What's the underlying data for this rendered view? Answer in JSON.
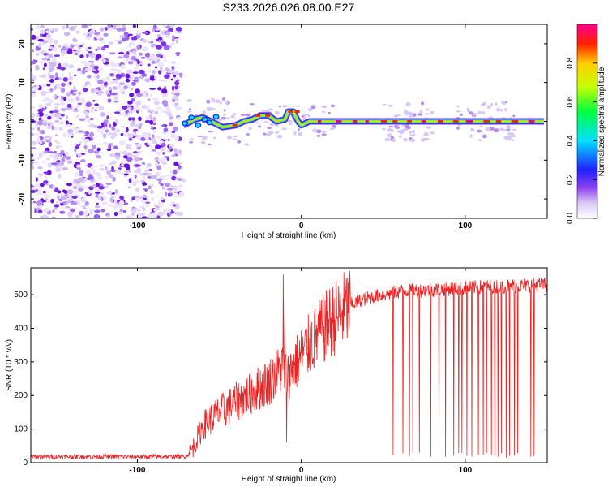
{
  "figure_title": "S233.2026.026.08.00.E27",
  "chart_data": [
    {
      "type": "heatmap",
      "name": "spectrogram",
      "xlabel": "Height of straight line (km)",
      "ylabel": "Frequency (Hz)",
      "xlim": [
        -165,
        150
      ],
      "ylim": [
        -25,
        25
      ],
      "xticks": [
        -100,
        0,
        100
      ],
      "yticks": [
        -20,
        -10,
        0,
        10,
        20
      ],
      "colorbar": {
        "label": "Normalized spectral amplitude",
        "range": [
          0,
          1
        ],
        "ticks": [
          0.0,
          0.2,
          0.4,
          0.6,
          0.8
        ],
        "tick_labels": [
          "0.0",
          "0.2",
          "0.4",
          "0.6",
          "0.8"
        ],
        "colormap": [
          "#ffffff",
          "#d9c8f5",
          "#8a3ff0",
          "#2020ff",
          "#00e0ff",
          "#00ff40",
          "#c8ff00",
          "#ffcc00",
          "#ff2000",
          "#ff0090"
        ]
      },
      "noise_region_x": [
        -165,
        -73
      ],
      "signal_track": {
        "x": [
          -72,
          -65,
          -60,
          -55,
          -48,
          -40,
          -35,
          -30,
          -25,
          -20,
          -15,
          -10,
          -8,
          -5,
          -2,
          0,
          5,
          10,
          20,
          40,
          60,
          80,
          100,
          120,
          140,
          148
        ],
        "y": [
          -1,
          0.5,
          1,
          0,
          -1.5,
          -1,
          0,
          0.5,
          1.5,
          1.5,
          0,
          0.5,
          2.5,
          2.5,
          0,
          -1,
          0,
          0,
          0,
          0,
          0,
          0,
          0,
          0,
          0,
          0
        ]
      }
    },
    {
      "type": "line",
      "name": "snr",
      "xlabel": "Height of straight line (km)",
      "ylabel": "SNR (10 * v/v)",
      "xlim": [
        -165,
        150
      ],
      "ylim": [
        0,
        580
      ],
      "xticks": [
        -100,
        0,
        100
      ],
      "yticks": [
        0,
        100,
        200,
        300,
        400,
        500
      ],
      "color": "#ee2020",
      "trend": {
        "x": [
          -165,
          -70,
          -66,
          -60,
          -50,
          -40,
          -30,
          -20,
          -14,
          -12,
          -8,
          -5,
          0,
          10,
          20,
          30,
          40,
          60,
          80,
          100,
          120,
          150
        ],
        "y": [
          18,
          18,
          45,
          110,
          150,
          180,
          210,
          240,
          270,
          285,
          260,
          285,
          320,
          380,
          430,
          470,
          490,
          510,
          515,
          520,
          525,
          530
        ]
      },
      "spikes": [
        {
          "x": -11,
          "y": 560
        },
        {
          "x": -10,
          "y": 520
        },
        {
          "x": -9,
          "y": 60
        }
      ],
      "dropouts_x": [
        56,
        62,
        66,
        68,
        72,
        79,
        84,
        88,
        93,
        96,
        98,
        101,
        104,
        108,
        111,
        113,
        116,
        118,
        120,
        122,
        125,
        127,
        130,
        132,
        140,
        142
      ]
    }
  ]
}
